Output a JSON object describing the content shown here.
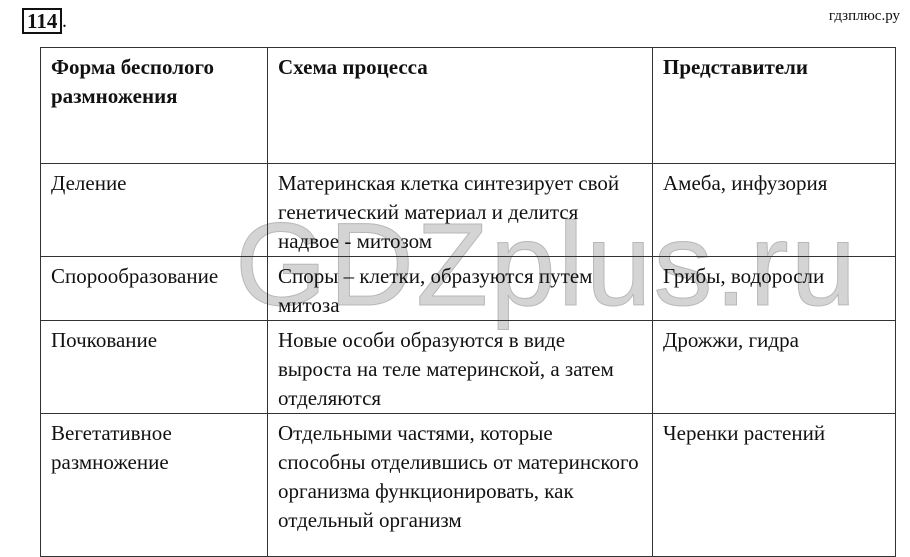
{
  "task_number": "114",
  "site": "гдзплюс.ру",
  "watermark": "GDZplus.ru",
  "table": {
    "headers": [
      "Форма бесполого размножения",
      "Схема процесса",
      "Представители"
    ],
    "rows": [
      {
        "form": "Деление",
        "scheme": "Материнская клетка синтезирует свой генетический материал и делится надвое - митозом",
        "examples": "Амеба, инфузория"
      },
      {
        "form": "Спорообразование",
        "scheme": "Споры – клетки, образуются путем митоза",
        "examples": "Грибы, водоросли"
      },
      {
        "form": "Почкование",
        "scheme": "Новые особи образуются в виде выроста на теле материнской, а затем отделяются",
        "examples": "Дрожжи, гидра"
      },
      {
        "form": "Вегетативное размножение",
        "scheme": "Отдельными частями, которые способны отделившись от материнского организма функционировать, как отдельный организм",
        "examples": "Черенки растений"
      }
    ]
  }
}
